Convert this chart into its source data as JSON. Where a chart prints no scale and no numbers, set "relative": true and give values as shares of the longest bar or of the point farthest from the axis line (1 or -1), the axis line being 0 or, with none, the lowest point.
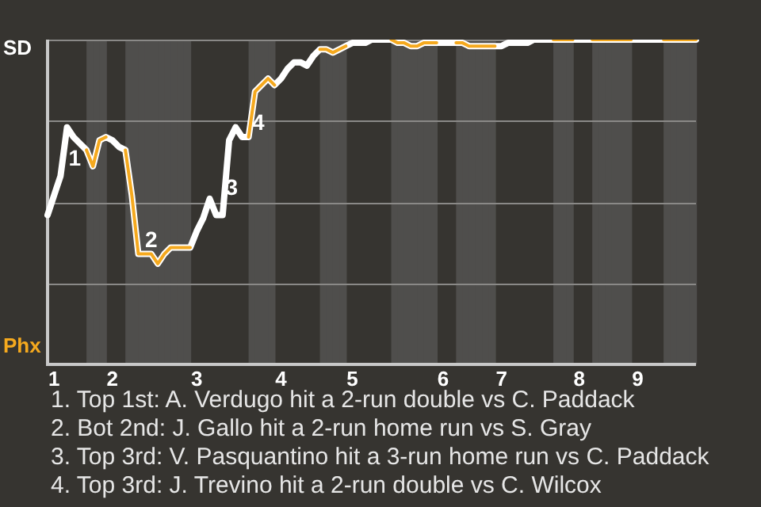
{
  "chart_data": {
    "type": "line",
    "relative": true,
    "categories": [
      null,
      "1",
      null,
      null,
      null,
      null,
      null,
      null,
      null,
      null,
      "2",
      null,
      null,
      null,
      null,
      null,
      null,
      null,
      null,
      null,
      null,
      null,
      null,
      "3",
      null,
      null,
      null,
      null,
      null,
      null,
      null,
      null,
      null,
      null,
      null,
      null,
      "4",
      null,
      null,
      null,
      null,
      null,
      null,
      null,
      null,
      null,
      null,
      "5",
      null,
      null,
      null,
      null,
      null,
      null,
      null,
      null,
      null,
      null,
      null,
      null,
      null,
      "6",
      null,
      null,
      null,
      null,
      null,
      null,
      null,
      null,
      "7",
      null,
      null,
      null,
      null,
      null,
      null,
      null,
      null,
      null,
      null,
      null,
      "8",
      null,
      null,
      null,
      null,
      null,
      null,
      null,
      null,
      "9",
      null,
      null,
      null,
      null,
      null,
      null,
      null,
      null,
      null
    ],
    "series": [
      {
        "color": "#ffffff",
        "values": [
          0.46,
          0.52,
          0.58,
          0.73,
          0.7,
          0.68,
          0.66,
          0.61,
          0.69,
          0.7,
          0.69,
          0.67,
          0.66,
          0.52,
          0.34,
          0.34,
          0.34,
          0.31,
          0.34,
          0.36,
          0.36,
          0.36,
          0.36,
          0.41,
          0.45,
          0.51,
          0.46,
          0.46,
          0.69,
          0.73,
          0.7,
          0.7,
          0.84,
          0.86,
          0.88,
          0.86,
          0.88,
          0.91,
          0.93,
          0.93,
          0.92,
          0.95,
          0.97,
          0.97,
          0.96,
          0.97,
          0.98,
          0.99,
          0.99,
          0.99,
          1,
          1,
          1,
          1,
          0.99,
          0.99,
          0.98,
          0.98,
          0.99,
          0.99,
          0.99,
          0.99,
          0.99,
          0.99,
          0.99,
          0.98,
          0.98,
          0.98,
          0.98,
          0.98,
          0.98,
          0.99,
          0.99,
          0.99,
          0.99,
          1,
          1,
          1,
          1,
          1,
          1,
          1,
          1,
          1,
          1,
          1,
          1,
          1,
          1,
          1,
          1,
          1,
          1,
          1,
          1,
          1,
          1,
          1,
          1,
          1,
          1
        ]
      },
      {
        "color": "#f5a91e",
        "values": [
          null,
          null,
          null,
          null,
          null,
          null,
          0.66,
          0.61,
          0.69,
          0.7,
          null,
          null,
          0.66,
          0.52,
          0.34,
          0.34,
          0.34,
          0.31,
          0.34,
          0.36,
          0.36,
          0.36,
          0.36,
          null,
          null,
          null,
          null,
          null,
          null,
          null,
          null,
          0.7,
          0.84,
          0.86,
          0.88,
          0.86,
          null,
          null,
          null,
          null,
          null,
          null,
          0.97,
          0.97,
          0.96,
          0.97,
          0.98,
          null,
          null,
          null,
          null,
          null,
          null,
          1,
          0.99,
          0.99,
          0.98,
          0.98,
          0.99,
          0.99,
          0.99,
          null,
          null,
          0.99,
          0.99,
          0.98,
          0.98,
          0.98,
          0.98,
          0.98,
          null,
          null,
          null,
          null,
          null,
          null,
          null,
          null,
          1,
          1,
          1,
          1,
          null,
          null,
          1,
          1,
          1,
          1,
          1,
          1,
          1,
          null,
          null,
          null,
          null,
          1,
          1,
          1,
          1,
          1,
          1
        ]
      }
    ],
    "grid": "y",
    "marker": "none",
    "line_style": "solid",
    "annotations": [
      "SD",
      "Phx",
      "1",
      "2",
      "3",
      "4",
      "1. Top 1st: A. Verdugo hit a 2-run double vs C. Paddack",
      "2. Bot 2nd: J. Gallo hit a 2-run home run vs S. Gray",
      "3. Top 3rd: V. Pasquantino hit a 3-run home run vs C. Paddack",
      "4. Top 3rd: J. Trevino hit a 2-run double vs C. Wilcox"
    ]
  }
}
